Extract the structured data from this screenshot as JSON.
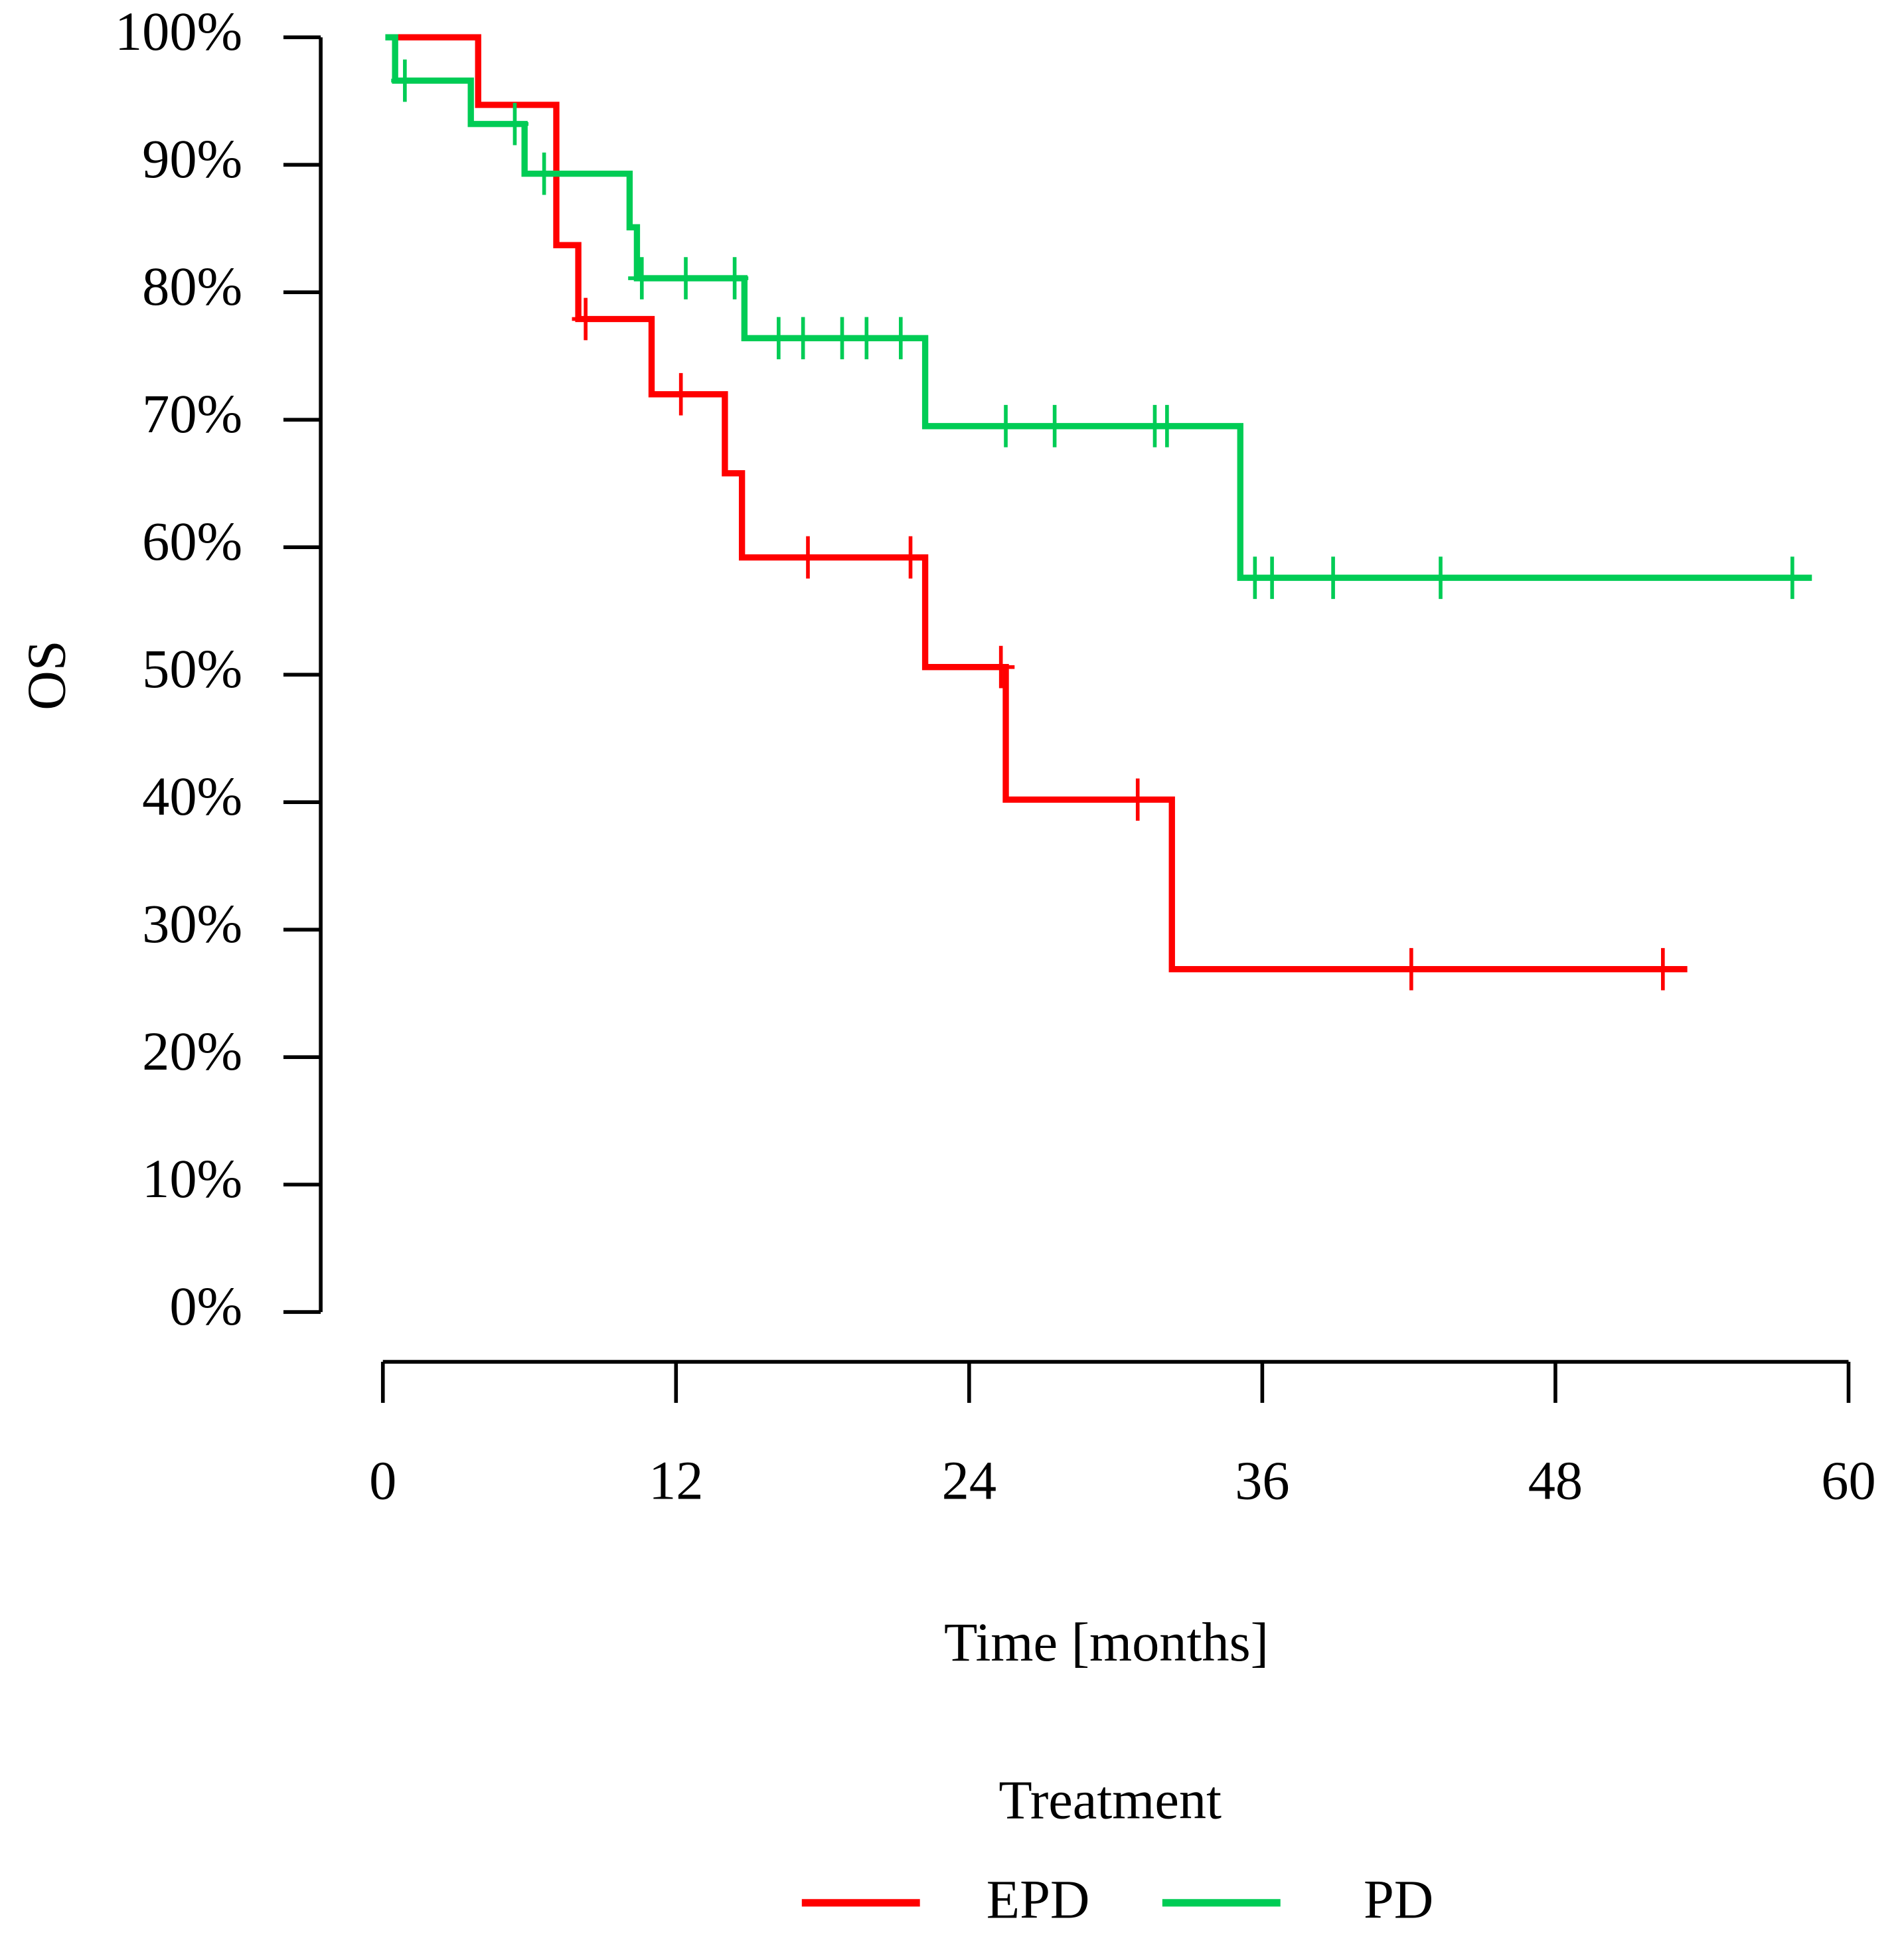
{
  "chart_data": {
    "type": "survival",
    "x_label": "Time [months]",
    "y_label": "OS",
    "legend_title": "Treatment",
    "xlim": [
      0,
      60
    ],
    "xticks": [
      0,
      12,
      24,
      36,
      48,
      60
    ],
    "ylim": [
      0,
      100
    ],
    "yticks": [
      {
        "value": 0,
        "label": "0%"
      },
      {
        "value": 10,
        "label": "10%"
      },
      {
        "value": 20,
        "label": "20%"
      },
      {
        "value": 30,
        "label": "30%"
      },
      {
        "value": 40,
        "label": "40%"
      },
      {
        "value": 50,
        "label": "50%"
      },
      {
        "value": 60,
        "label": "60%"
      },
      {
        "value": 70,
        "label": "70%"
      },
      {
        "value": 80,
        "label": "80%"
      },
      {
        "value": 90,
        "label": "90%"
      },
      {
        "value": 100,
        "label": "100%"
      }
    ],
    "series": [
      {
        "name": "EPD",
        "color": "#ff0000",
        "x": [
          0.6,
          3.9,
          7.1,
          8.0,
          11.0,
          14.0,
          14.7,
          22.2,
          25.5,
          32.3,
          53.4
        ],
        "values": [
          100,
          94.7,
          83.7,
          77.9,
          72.0,
          65.8,
          59.2,
          50.6,
          40.2,
          26.9,
          26.9
        ],
        "censor_x": [
          8.3,
          12.2,
          17.4,
          21.6,
          25.3,
          30.9,
          42.1,
          52.4
        ],
        "censor_values": [
          77.9,
          72.0,
          59.2,
          59.2,
          50.6,
          40.2,
          26.9,
          26.9
        ]
      },
      {
        "name": "PD",
        "color": "#00cc55",
        "x": [
          0.1,
          0.5,
          3.6,
          5.8,
          10.1,
          10.4,
          14.8,
          22.2,
          35.1,
          58.5
        ],
        "values": [
          100,
          96.6,
          93.2,
          89.3,
          85.1,
          81.1,
          76.4,
          69.5,
          57.6,
          57.6
        ],
        "censor_x": [
          0.9,
          5.4,
          6.6,
          10.6,
          12.4,
          14.4,
          16.2,
          17.2,
          18.8,
          19.8,
          21.2,
          25.5,
          27.5,
          31.6,
          32.1,
          35.7,
          36.4,
          38.9,
          43.3,
          57.7
        ],
        "censor_values": [
          96.6,
          93.2,
          89.3,
          81.1,
          81.1,
          81.1,
          76.4,
          76.4,
          76.4,
          76.4,
          76.4,
          69.5,
          69.5,
          69.5,
          69.5,
          57.6,
          57.6,
          57.6,
          57.6,
          57.6
        ]
      }
    ]
  }
}
